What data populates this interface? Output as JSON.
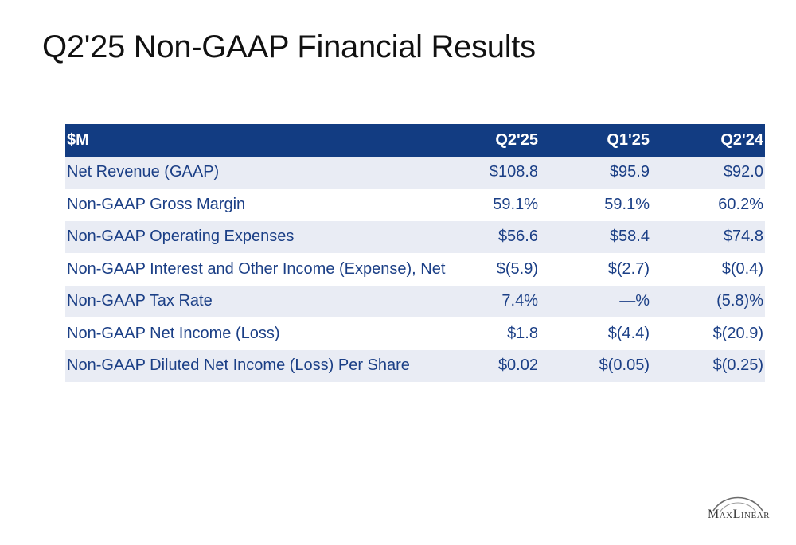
{
  "slide": {
    "title": "Q2'25 Non-GAAP Financial Results"
  },
  "table": {
    "headers": [
      "$M",
      "Q2'25",
      "Q1'25",
      "Q2'24"
    ],
    "rows": [
      [
        "Net Revenue (GAAP)",
        "$108.8",
        "$95.9",
        "$92.0"
      ],
      [
        "Non-GAAP Gross Margin",
        "59.1%",
        "59.1%",
        "60.2%"
      ],
      [
        "Non-GAAP Operating Expenses",
        "$56.6",
        "$58.4",
        "$74.8"
      ],
      [
        "Non-GAAP Interest and Other Income (Expense), Net",
        "$(5.9)",
        "$(2.7)",
        "$(0.4)"
      ],
      [
        "Non-GAAP Tax Rate",
        "7.4%",
        "—%",
        "(5.8)%"
      ],
      [
        "Non-GAAP Net Income (Loss)",
        "$1.8",
        "$(4.4)",
        "$(20.9)"
      ],
      [
        "Non-GAAP Diluted Net Income (Loss) Per Share",
        "$0.02",
        "$(0.05)",
        "$(0.25)"
      ]
    ]
  },
  "logo": {
    "text": "MaxLinear"
  },
  "colors": {
    "header_bg": "#123c82",
    "header_text": "#ffffff",
    "body_text": "#1b3f86",
    "row_stripe": "#e9ecf4"
  }
}
